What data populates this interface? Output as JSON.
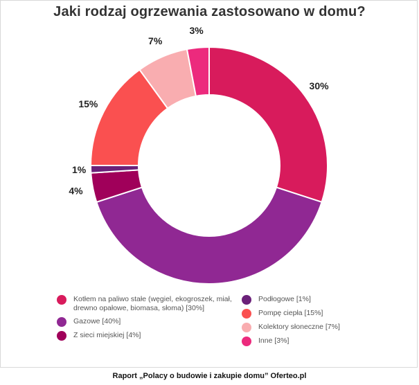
{
  "chart_data": {
    "type": "pie",
    "title": "Jaki rodzaj ogrzewania zastosowano w domu?",
    "donut": true,
    "slices": [
      {
        "label": "Kotłem na paliwo stałe (węgiel, ekogroszek, miał, drewno opałowe, biomasa, słoma) [30%]",
        "value": 30,
        "value_label": "30%",
        "color": "#d81b5c"
      },
      {
        "label": "Gazowe [40%]",
        "value": 40,
        "value_label": "40%",
        "color": "#902893"
      },
      {
        "label": "Z sieci miejskiej [4%]",
        "value": 4,
        "value_label": "4%",
        "color": "#a0005a"
      },
      {
        "label": "Podłogowe [1%]",
        "value": 1,
        "value_label": "1%",
        "color": "#6b2179"
      },
      {
        "label": "Pompę ciepła [15%]",
        "value": 15,
        "value_label": "15%",
        "color": "#fa5050"
      },
      {
        "label": "Kolektory słoneczne [7%]",
        "value": 7,
        "value_label": "7%",
        "color": "#f9adb0"
      },
      {
        "label": "Inne [3%]",
        "value": 3,
        "value_label": "3%",
        "color": "#ec2a7d"
      }
    ],
    "legend_position": "bottom"
  },
  "footer": "Raport „Polacy o budowie i zakupie domu” Oferteo.pl"
}
